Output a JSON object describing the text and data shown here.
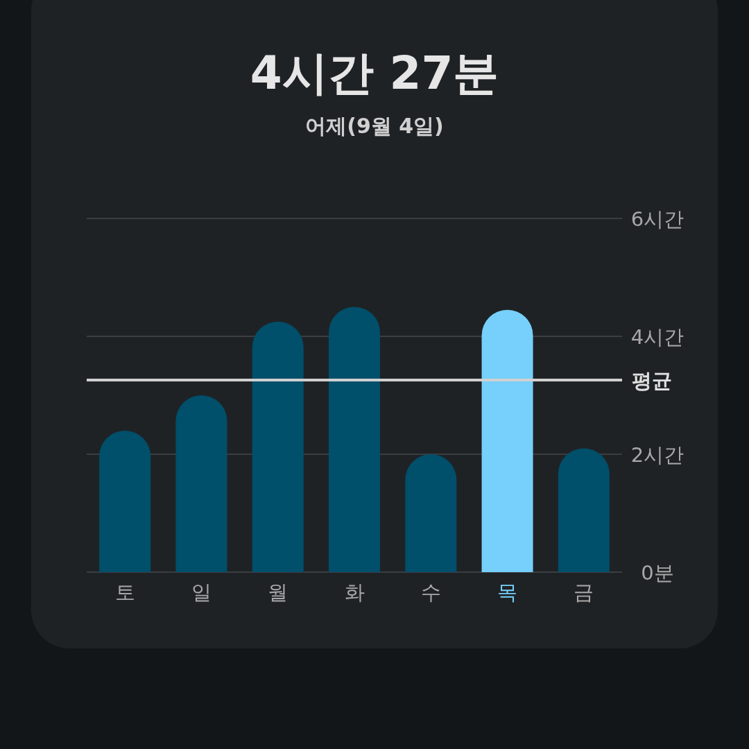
{
  "chart_data": {
    "type": "bar",
    "title": "4시간 27분",
    "subtitle": "어제(9월 4일)",
    "categories": [
      "토",
      "일",
      "월",
      "화",
      "수",
      "목",
      "금"
    ],
    "values": [
      2.4,
      3.0,
      4.25,
      4.5,
      2.0,
      4.45,
      2.1
    ],
    "colors": [
      "#004f6b",
      "#004f6b",
      "#004f6b",
      "#004f6b",
      "#004f6b",
      "#76d0fb",
      "#004f6b"
    ],
    "ylim": [
      0,
      6
    ],
    "yticks": [
      {
        "value": 0,
        "label": "0분"
      },
      {
        "value": 2,
        "label": "2시간"
      },
      {
        "value": 4,
        "label": "4시간"
      },
      {
        "value": 6,
        "label": "6시간"
      }
    ],
    "grid": "y",
    "ref_lines": [
      {
        "axis": "y",
        "value": 3.26,
        "label": "평균",
        "color": "#d0d0d0"
      }
    ]
  }
}
